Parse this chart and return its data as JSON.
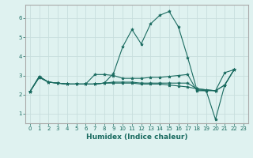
{
  "title": "",
  "xlabel": "Humidex (Indice chaleur)",
  "xlim": [
    -0.5,
    23.5
  ],
  "ylim": [
    0.5,
    6.7
  ],
  "yticks": [
    1,
    2,
    3,
    4,
    5,
    6
  ],
  "xticks": [
    0,
    1,
    2,
    3,
    4,
    5,
    6,
    7,
    8,
    9,
    10,
    11,
    12,
    13,
    14,
    15,
    16,
    17,
    18,
    19,
    20,
    21,
    22,
    23
  ],
  "bg_color": "#dff2f0",
  "grid_color": "#c8dedd",
  "line_color": "#1a6b60",
  "lines": [
    [
      2.15,
      2.95,
      2.65,
      2.6,
      2.55,
      2.55,
      2.55,
      2.55,
      2.6,
      3.1,
      4.5,
      5.4,
      4.65,
      5.7,
      6.15,
      6.35,
      5.55,
      3.95,
      2.25,
      2.2,
      0.7,
      2.5,
      3.3
    ],
    [
      2.15,
      2.95,
      2.65,
      2.6,
      2.55,
      2.55,
      2.55,
      3.05,
      3.05,
      3.0,
      2.85,
      2.85,
      2.85,
      2.9,
      2.9,
      2.95,
      3.0,
      3.05,
      2.2,
      2.2,
      2.2,
      3.15,
      3.3
    ],
    [
      2.15,
      2.9,
      2.65,
      2.6,
      2.55,
      2.55,
      2.55,
      2.55,
      2.6,
      2.6,
      2.6,
      2.6,
      2.55,
      2.55,
      2.55,
      2.5,
      2.45,
      2.4,
      2.3,
      2.25,
      2.2,
      2.5,
      3.3
    ],
    [
      2.15,
      2.9,
      2.65,
      2.6,
      2.55,
      2.55,
      2.55,
      2.55,
      2.6,
      2.65,
      2.65,
      2.65,
      2.6,
      2.6,
      2.6,
      2.6,
      2.6,
      2.6,
      2.3,
      2.25,
      2.2,
      2.5,
      3.3
    ]
  ],
  "x": [
    0,
    1,
    2,
    3,
    4,
    5,
    6,
    7,
    8,
    9,
    10,
    11,
    12,
    13,
    14,
    15,
    16,
    17,
    18,
    19,
    20,
    21,
    22
  ],
  "figsize": [
    3.2,
    2.0
  ],
  "dpi": 100
}
